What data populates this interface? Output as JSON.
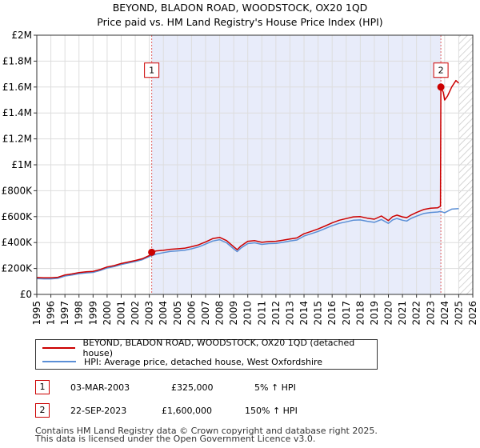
{
  "chart_data": {
    "type": "line",
    "title": "BEYOND, BLADON ROAD, WOODSTOCK, OX20 1QD",
    "subtitle": "Price paid vs. HM Land Registry's House Price Index (HPI)",
    "xlabel": "",
    "ylabel": "",
    "xlim": [
      1995,
      2026
    ],
    "ylim": [
      0,
      2000000
    ],
    "x_ticks": [
      "1995",
      "1996",
      "1997",
      "1998",
      "1999",
      "2000",
      "2001",
      "2002",
      "2003",
      "2004",
      "2005",
      "2006",
      "2007",
      "2008",
      "2009",
      "2010",
      "2011",
      "2012",
      "2013",
      "2014",
      "2015",
      "2016",
      "2017",
      "2018",
      "2019",
      "2020",
      "2021",
      "2022",
      "2023",
      "2024",
      "2025",
      "2026"
    ],
    "y_ticks": [
      {
        "value": 0,
        "label": "£0"
      },
      {
        "value": 200000,
        "label": "£200K"
      },
      {
        "value": 400000,
        "label": "£400K"
      },
      {
        "value": 600000,
        "label": "£600K"
      },
      {
        "value": 800000,
        "label": "£800K"
      },
      {
        "value": 1000000,
        "label": "£1M"
      },
      {
        "value": 1200000,
        "label": "£1.2M"
      },
      {
        "value": 1400000,
        "label": "£1.4M"
      },
      {
        "value": 1600000,
        "label": "£1.6M"
      },
      {
        "value": 1800000,
        "label": "£1.8M"
      },
      {
        "value": 2000000,
        "label": "£2M"
      }
    ],
    "grid": true,
    "shaded_region": {
      "from": 2003.17,
      "to": 2023.73,
      "color": "#e8ecfa"
    },
    "hatched_region": {
      "from": 2025.0,
      "to": 2026.0
    },
    "annotations": [
      {
        "label": "1",
        "x": 2003.17,
        "y": 325000,
        "box_y": 1730000
      },
      {
        "label": "2",
        "x": 2023.73,
        "y": 1600000,
        "box_y": 1730000
      }
    ],
    "series": [
      {
        "name": "BEYOND, BLADON ROAD, WOODSTOCK, OX20 1QD (detached house)",
        "color": "#cc0000",
        "x": [
          1995.0,
          1995.5,
          1996.0,
          1996.5,
          1997.0,
          1997.5,
          1998.0,
          1998.5,
          1999.0,
          1999.5,
          2000.0,
          2000.5,
          2001.0,
          2001.5,
          2002.0,
          2002.5,
          2003.0,
          2003.17,
          2003.5,
          2004.0,
          2004.5,
          2005.0,
          2005.5,
          2006.0,
          2006.5,
          2007.0,
          2007.5,
          2008.0,
          2008.5,
          2009.0,
          2009.25,
          2009.5,
          2010.0,
          2010.5,
          2011.0,
          2011.5,
          2012.0,
          2012.5,
          2013.0,
          2013.5,
          2014.0,
          2014.5,
          2015.0,
          2015.5,
          2016.0,
          2016.5,
          2017.0,
          2017.5,
          2018.0,
          2018.5,
          2019.0,
          2019.5,
          2020.0,
          2020.3,
          2020.6,
          2021.0,
          2021.3,
          2021.6,
          2022.0,
          2022.5,
          2023.0,
          2023.5,
          2023.7,
          2023.73,
          2023.9,
          2024.0,
          2024.2,
          2024.5,
          2024.8,
          2025.0
        ],
        "values": [
          130000,
          128000,
          128000,
          132000,
          150000,
          158000,
          168000,
          174000,
          178000,
          192000,
          212000,
          222000,
          238000,
          250000,
          262000,
          275000,
          300000,
          325000,
          336000,
          340000,
          348000,
          352000,
          356000,
          368000,
          382000,
          405000,
          430000,
          440000,
          415000,
          368000,
          345000,
          372000,
          410000,
          415000,
          402000,
          408000,
          410000,
          418000,
          428000,
          436000,
          468000,
          486000,
          505000,
          528000,
          552000,
          572000,
          585000,
          598000,
          600000,
          588000,
          580000,
          605000,
          570000,
          600000,
          612000,
          598000,
          592000,
          612000,
          632000,
          655000,
          665000,
          668000,
          680000,
          1600000,
          1560000,
          1500000,
          1530000,
          1600000,
          1650000,
          1630000
        ]
      },
      {
        "name": "HPI: Average price, detached house, West Oxfordshire",
        "color": "#5b8fd6",
        "x": [
          1995.0,
          1995.5,
          1996.0,
          1996.5,
          1997.0,
          1997.5,
          1998.0,
          1998.5,
          1999.0,
          1999.5,
          2000.0,
          2000.5,
          2001.0,
          2001.5,
          2002.0,
          2002.5,
          2003.0,
          2003.5,
          2004.0,
          2004.5,
          2005.0,
          2005.5,
          2006.0,
          2006.5,
          2007.0,
          2007.5,
          2008.0,
          2008.5,
          2009.0,
          2009.25,
          2009.5,
          2010.0,
          2010.5,
          2011.0,
          2011.5,
          2012.0,
          2012.5,
          2013.0,
          2013.5,
          2014.0,
          2014.5,
          2015.0,
          2015.5,
          2016.0,
          2016.5,
          2017.0,
          2017.5,
          2018.0,
          2018.5,
          2019.0,
          2019.5,
          2020.0,
          2020.3,
          2020.6,
          2021.0,
          2021.3,
          2021.6,
          2022.0,
          2022.5,
          2023.0,
          2023.5,
          2023.73,
          2024.0,
          2024.5,
          2025.0
        ],
        "values": [
          122000,
          120000,
          120000,
          124000,
          142000,
          150000,
          160000,
          166000,
          170000,
          184000,
          204000,
          214000,
          230000,
          242000,
          254000,
          268000,
          292000,
          312000,
          322000,
          332000,
          336000,
          340000,
          352000,
          366000,
          388000,
          412000,
          422000,
          398000,
          352000,
          330000,
          356000,
          392000,
          398000,
          386000,
          392000,
          394000,
          402000,
          412000,
          420000,
          450000,
          468000,
          486000,
          508000,
          530000,
          548000,
          560000,
          572000,
          575000,
          564000,
          556000,
          578000,
          548000,
          575000,
          586000,
          572000,
          566000,
          586000,
          604000,
          624000,
          632000,
          636000,
          640000,
          630000,
          658000,
          662000
        ]
      }
    ]
  },
  "legend": {
    "property_label": "BEYOND, BLADON ROAD, WOODSTOCK, OX20 1QD (detached house)",
    "hpi_label": "HPI: Average price, detached house, West Oxfordshire"
  },
  "transactions": [
    {
      "num": "1",
      "date": "03-MAR-2003",
      "price": "£325,000",
      "hpi": "5% ↑ HPI"
    },
    {
      "num": "2",
      "date": "22-SEP-2023",
      "price": "£1,600,000",
      "hpi": "150% ↑ HPI"
    }
  ],
  "footer": {
    "line1": "Contains HM Land Registry data © Crown copyright and database right 2025.",
    "line2": "This data is licensed under the Open Government Licence v3.0."
  }
}
